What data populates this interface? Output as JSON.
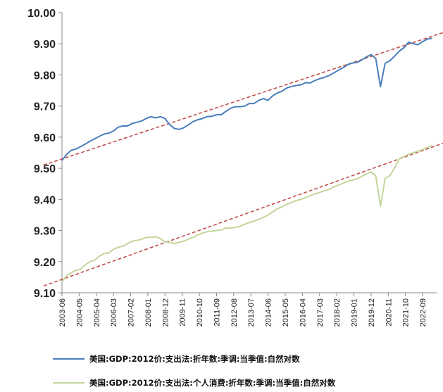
{
  "chart_data": {
    "type": "line",
    "title": "",
    "xlabel": "",
    "ylabel": "",
    "ylim": [
      9.1,
      10.0
    ],
    "yticks": [
      "10.00",
      "9.90",
      "9.80",
      "9.70",
      "9.60",
      "9.50",
      "9.40",
      "9.30",
      "9.20",
      "9.10"
    ],
    "x_start": "2003-06",
    "x_end": "2023-06",
    "xtick_labels": [
      "2003-06",
      "2004-05",
      "2005-04",
      "2006-03",
      "2007-02",
      "2008-01",
      "2008-12",
      "2009-11",
      "2010-10",
      "2011-09",
      "2012-08",
      "2013-07",
      "2014-06",
      "2015-05",
      "2016-04",
      "2017-03",
      "2018-02",
      "2019-01",
      "2019-12",
      "2020-11",
      "2021-10",
      "2022-09"
    ],
    "grid": false,
    "legend_position": "bottom",
    "series": [
      {
        "name": "美国:GDP:2012价:支出法:折年数:季调:当季值:自然对数",
        "color": "#4a7ebb",
        "x": [
          "2003-06",
          "2003-09",
          "2003-12",
          "2004-03",
          "2004-06",
          "2004-09",
          "2004-12",
          "2005-03",
          "2005-06",
          "2005-09",
          "2005-12",
          "2006-03",
          "2006-06",
          "2006-09",
          "2006-12",
          "2007-03",
          "2007-06",
          "2007-09",
          "2007-12",
          "2008-03",
          "2008-06",
          "2008-09",
          "2008-12",
          "2009-03",
          "2009-06",
          "2009-09",
          "2009-12",
          "2010-03",
          "2010-06",
          "2010-09",
          "2010-12",
          "2011-03",
          "2011-06",
          "2011-09",
          "2011-12",
          "2012-03",
          "2012-06",
          "2012-09",
          "2012-12",
          "2013-03",
          "2013-06",
          "2013-09",
          "2013-12",
          "2014-03",
          "2014-06",
          "2014-09",
          "2014-12",
          "2015-03",
          "2015-06",
          "2015-09",
          "2015-12",
          "2016-03",
          "2016-06",
          "2016-09",
          "2016-12",
          "2017-03",
          "2017-06",
          "2017-09",
          "2017-12",
          "2018-03",
          "2018-06",
          "2018-09",
          "2018-12",
          "2019-03",
          "2019-06",
          "2019-09",
          "2019-12",
          "2020-03",
          "2020-06",
          "2020-09",
          "2020-12",
          "2021-03",
          "2021-06",
          "2021-09",
          "2021-12",
          "2022-03",
          "2022-06",
          "2022-09",
          "2022-12",
          "2023-03"
        ],
        "values": [
          9.525,
          9.545,
          9.558,
          9.562,
          9.57,
          9.578,
          9.587,
          9.595,
          9.603,
          9.61,
          9.613,
          9.62,
          9.632,
          9.636,
          9.636,
          9.644,
          9.648,
          9.652,
          9.66,
          9.666,
          9.662,
          9.666,
          9.66,
          9.64,
          9.628,
          9.625,
          9.63,
          9.64,
          9.65,
          9.656,
          9.66,
          9.666,
          9.667,
          9.672,
          9.672,
          9.683,
          9.693,
          9.698,
          9.698,
          9.7,
          9.708,
          9.708,
          9.718,
          9.724,
          9.718,
          9.733,
          9.742,
          9.748,
          9.758,
          9.763,
          9.766,
          9.768,
          9.775,
          9.774,
          9.782,
          9.788,
          9.792,
          9.798,
          9.806,
          9.815,
          9.823,
          9.833,
          9.838,
          9.84,
          9.848,
          9.858,
          9.865,
          9.853,
          9.762,
          9.838,
          9.845,
          9.86,
          9.876,
          9.887,
          9.905,
          9.9,
          9.897,
          9.907,
          9.915,
          9.918
        ]
      },
      {
        "name": "美国:GDP:2012价:支出法:个人消费:折年数:季调:当季值:自然对数",
        "color": "#c3d69b",
        "x": [
          "2003-06",
          "2003-09",
          "2003-12",
          "2004-03",
          "2004-06",
          "2004-09",
          "2004-12",
          "2005-03",
          "2005-06",
          "2005-09",
          "2005-12",
          "2006-03",
          "2006-06",
          "2006-09",
          "2006-12",
          "2007-03",
          "2007-06",
          "2007-09",
          "2007-12",
          "2008-03",
          "2008-06",
          "2008-09",
          "2008-12",
          "2009-03",
          "2009-06",
          "2009-09",
          "2009-12",
          "2010-03",
          "2010-06",
          "2010-09",
          "2010-12",
          "2011-03",
          "2011-06",
          "2011-09",
          "2011-12",
          "2012-03",
          "2012-06",
          "2012-09",
          "2012-12",
          "2013-03",
          "2013-06",
          "2013-09",
          "2013-12",
          "2014-03",
          "2014-06",
          "2014-09",
          "2014-12",
          "2015-03",
          "2015-06",
          "2015-09",
          "2015-12",
          "2016-03",
          "2016-06",
          "2016-09",
          "2016-12",
          "2017-03",
          "2017-06",
          "2017-09",
          "2017-12",
          "2018-03",
          "2018-06",
          "2018-09",
          "2018-12",
          "2019-03",
          "2019-06",
          "2019-09",
          "2019-12",
          "2020-03",
          "2020-06",
          "2020-09",
          "2020-12",
          "2021-03",
          "2021-06",
          "2021-09",
          "2021-12",
          "2022-03",
          "2022-06",
          "2022-09",
          "2022-12",
          "2023-03"
        ],
        "values": [
          9.135,
          9.155,
          9.165,
          9.172,
          9.176,
          9.19,
          9.2,
          9.205,
          9.218,
          9.226,
          9.228,
          9.24,
          9.246,
          9.25,
          9.258,
          9.266,
          9.268,
          9.272,
          9.278,
          9.278,
          9.28,
          9.274,
          9.263,
          9.262,
          9.258,
          9.262,
          9.266,
          9.272,
          9.278,
          9.286,
          9.292,
          9.296,
          9.298,
          9.3,
          9.302,
          9.308,
          9.308,
          9.31,
          9.314,
          9.32,
          9.326,
          9.33,
          9.336,
          9.342,
          9.35,
          9.36,
          9.37,
          9.376,
          9.384,
          9.39,
          9.396,
          9.4,
          9.406,
          9.412,
          9.418,
          9.422,
          9.428,
          9.432,
          9.44,
          9.446,
          9.452,
          9.458,
          9.462,
          9.466,
          9.474,
          9.482,
          9.488,
          9.476,
          9.378,
          9.468,
          9.476,
          9.5,
          9.53,
          9.538,
          9.545,
          9.55,
          9.555,
          9.56,
          9.567,
          9.573
        ]
      }
    ],
    "trend_lines": [
      {
        "color": "#c0504d",
        "style": "dashed",
        "x": [
          "2003-06",
          "2023-06"
        ],
        "values": [
          9.53,
          9.929
        ]
      },
      {
        "color": "#c0504d",
        "style": "dashed",
        "x": [
          "2003-06",
          "2023-06"
        ],
        "values": [
          9.143,
          9.573
        ]
      }
    ]
  }
}
